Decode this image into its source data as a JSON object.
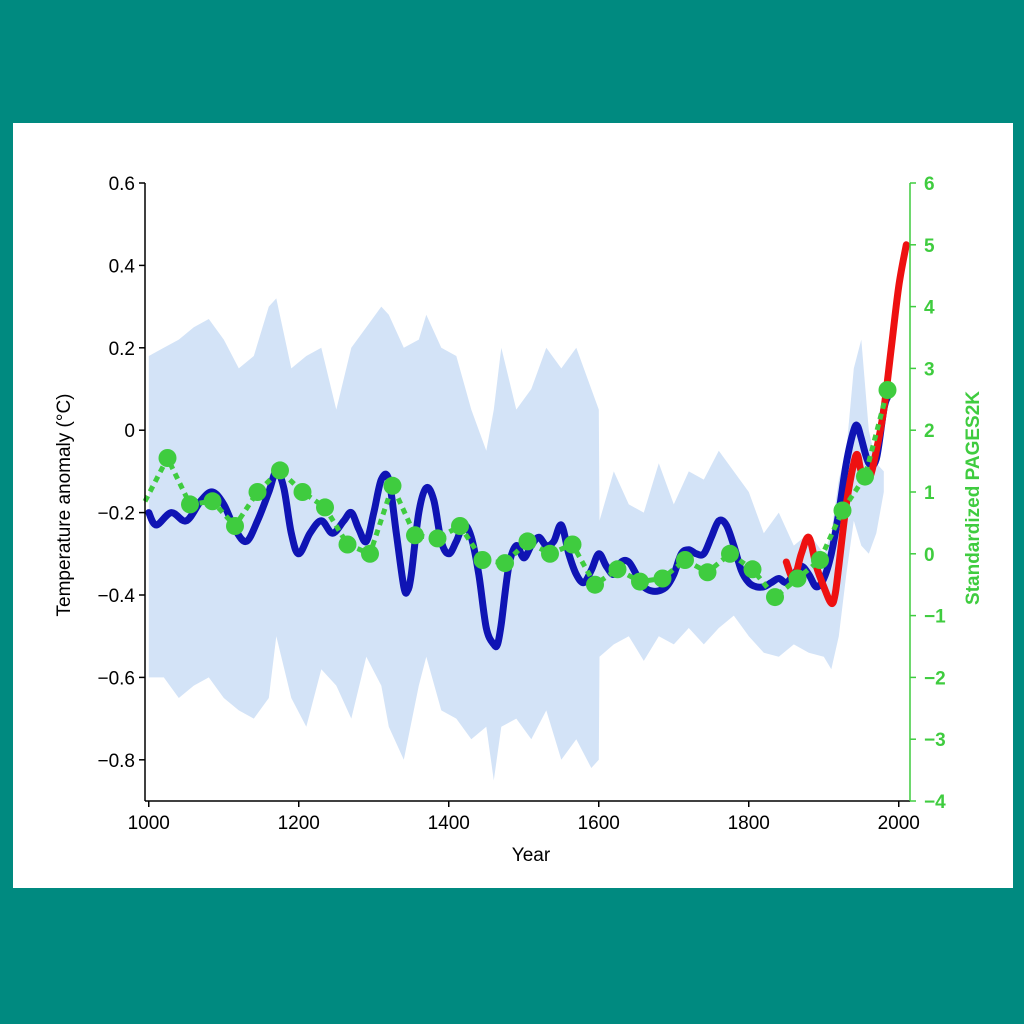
{
  "colors": {
    "background": "#008a80",
    "panel": "#ffffff",
    "reconstruction": "#0f14b4",
    "uncertainty": "#d3e3f7",
    "instrumental": "#ee1111",
    "pages2k": "#3fcc3f"
  },
  "chart_data": {
    "type": "line",
    "title": "",
    "xlabel": "Year",
    "ylabel": "Temperature anomaly (°C)",
    "ylabel_right": "Standardized PAGES2K",
    "xlim": [
      995,
      2015
    ],
    "ylim": [
      -0.9,
      0.6
    ],
    "ylim_right": [
      -4,
      6
    ],
    "x_ticks": [
      1000,
      1200,
      1400,
      1600,
      1800,
      2000
    ],
    "y_ticks": [
      0.6,
      0.4,
      0.2,
      0,
      -0.2,
      -0.4,
      -0.6,
      -0.8
    ],
    "y_tick_labels": [
      "0.6",
      "0.4",
      "0.2",
      "0",
      "−0.2",
      "−0.4",
      "−0.6",
      "−0.8"
    ],
    "y_right_ticks": [
      6,
      5,
      4,
      3,
      2,
      1,
      0,
      -1,
      -2,
      -3,
      -4
    ],
    "y_right_tick_labels": [
      "6",
      "5",
      "4",
      "3",
      "2",
      "1",
      "0",
      "−1",
      "−2",
      "−3",
      "−4"
    ],
    "grid": false,
    "series": [
      {
        "type": "band",
        "x": [
          1000,
          1020,
          1040,
          1060,
          1080,
          1100,
          1120,
          1140,
          1160,
          1170,
          1190,
          1210,
          1230,
          1250,
          1270,
          1290,
          1310,
          1320,
          1340,
          1360,
          1370,
          1390,
          1410,
          1430,
          1450,
          1460,
          1470,
          1490,
          1510,
          1530,
          1550,
          1570,
          1590,
          1600,
          1601,
          1620,
          1640,
          1660,
          1680,
          1700,
          1720,
          1740,
          1760,
          1780,
          1800,
          1820,
          1840,
          1860,
          1880,
          1900,
          1910,
          1920,
          1930,
          1940,
          1950,
          1960,
          1970,
          1980
        ],
        "upper": [
          0.18,
          0.2,
          0.22,
          0.25,
          0.27,
          0.22,
          0.15,
          0.18,
          0.3,
          0.32,
          0.15,
          0.18,
          0.2,
          0.05,
          0.2,
          0.25,
          0.3,
          0.28,
          0.2,
          0.22,
          0.28,
          0.2,
          0.18,
          0.05,
          -0.05,
          0.05,
          0.2,
          0.05,
          0.1,
          0.2,
          0.15,
          0.2,
          0.1,
          0.05,
          -0.22,
          -0.1,
          -0.18,
          -0.2,
          -0.08,
          -0.18,
          -0.1,
          -0.12,
          -0.05,
          -0.1,
          -0.15,
          -0.25,
          -0.2,
          -0.28,
          -0.25,
          -0.3,
          -0.25,
          -0.12,
          -0.05,
          0.15,
          0.22,
          0.0,
          -0.08,
          -0.1
        ],
        "lower": [
          -0.6,
          -0.6,
          -0.65,
          -0.62,
          -0.6,
          -0.65,
          -0.68,
          -0.7,
          -0.65,
          -0.5,
          -0.65,
          -0.72,
          -0.58,
          -0.62,
          -0.7,
          -0.55,
          -0.62,
          -0.72,
          -0.8,
          -0.62,
          -0.55,
          -0.68,
          -0.7,
          -0.75,
          -0.72,
          -0.85,
          -0.72,
          -0.7,
          -0.75,
          -0.68,
          -0.8,
          -0.75,
          -0.82,
          -0.8,
          -0.55,
          -0.52,
          -0.5,
          -0.56,
          -0.5,
          -0.52,
          -0.48,
          -0.52,
          -0.48,
          -0.45,
          -0.5,
          -0.54,
          -0.55,
          -0.52,
          -0.54,
          -0.55,
          -0.58,
          -0.5,
          -0.35,
          -0.22,
          -0.28,
          -0.3,
          -0.25,
          -0.15
        ]
      },
      {
        "type": "line",
        "x": [
          1000,
          1010,
          1030,
          1050,
          1070,
          1085,
          1100,
          1115,
          1130,
          1145,
          1160,
          1170,
          1180,
          1190,
          1200,
          1215,
          1230,
          1245,
          1260,
          1270,
          1280,
          1290,
          1300,
          1310,
          1320,
          1330,
          1340,
          1345,
          1350,
          1360,
          1370,
          1380,
          1390,
          1400,
          1410,
          1420,
          1430,
          1440,
          1450,
          1460,
          1465,
          1470,
          1480,
          1490,
          1500,
          1510,
          1520,
          1530,
          1540,
          1550,
          1560,
          1570,
          1580,
          1590,
          1600,
          1610,
          1620,
          1630,
          1640,
          1650,
          1660,
          1670,
          1680,
          1690,
          1700,
          1710,
          1720,
          1730,
          1740,
          1750,
          1760,
          1770,
          1780,
          1790,
          1800,
          1810,
          1820,
          1830,
          1840,
          1850,
          1860,
          1870,
          1880,
          1890,
          1900,
          1910,
          1920,
          1930,
          1940,
          1945,
          1950,
          1960,
          1970,
          1980,
          1985
        ],
        "y": [
          -0.2,
          -0.23,
          -0.2,
          -0.22,
          -0.17,
          -0.15,
          -0.18,
          -0.24,
          -0.27,
          -0.22,
          -0.15,
          -0.1,
          -0.14,
          -0.25,
          -0.3,
          -0.25,
          -0.22,
          -0.25,
          -0.22,
          -0.2,
          -0.24,
          -0.27,
          -0.2,
          -0.12,
          -0.12,
          -0.25,
          -0.38,
          -0.39,
          -0.35,
          -0.2,
          -0.14,
          -0.17,
          -0.27,
          -0.3,
          -0.27,
          -0.23,
          -0.26,
          -0.35,
          -0.48,
          -0.52,
          -0.52,
          -0.47,
          -0.33,
          -0.28,
          -0.31,
          -0.28,
          -0.26,
          -0.28,
          -0.27,
          -0.23,
          -0.3,
          -0.35,
          -0.37,
          -0.34,
          -0.3,
          -0.33,
          -0.35,
          -0.32,
          -0.32,
          -0.35,
          -0.38,
          -0.39,
          -0.39,
          -0.38,
          -0.35,
          -0.3,
          -0.29,
          -0.3,
          -0.3,
          -0.26,
          -0.22,
          -0.23,
          -0.28,
          -0.34,
          -0.37,
          -0.38,
          -0.38,
          -0.37,
          -0.36,
          -0.37,
          -0.35,
          -0.33,
          -0.35,
          -0.38,
          -0.36,
          -0.3,
          -0.2,
          -0.08,
          0.0,
          0.01,
          -0.02,
          -0.08,
          -0.07,
          0.05,
          0.08
        ]
      },
      {
        "type": "line",
        "x": [
          1850,
          1860,
          1870,
          1880,
          1890,
          1900,
          1910,
          1915,
          1920,
          1930,
          1940,
          1945,
          1950,
          1960,
          1970,
          1980,
          1990,
          2000,
          2010
        ],
        "y": [
          -0.32,
          -0.36,
          -0.3,
          -0.26,
          -0.33,
          -0.38,
          -0.42,
          -0.4,
          -0.33,
          -0.18,
          -0.08,
          -0.06,
          -0.1,
          -0.12,
          -0.05,
          0.05,
          0.2,
          0.35,
          0.45
        ]
      },
      {
        "type": "dotted-line",
        "axis": "right",
        "x": [
          995,
          1025,
          1055,
          1085,
          1115,
          1145,
          1175,
          1205,
          1235,
          1265,
          1295,
          1325,
          1355,
          1385,
          1415,
          1445,
          1475,
          1505,
          1535,
          1565,
          1595,
          1625,
          1655,
          1685,
          1715,
          1745,
          1775,
          1805,
          1835,
          1865,
          1895,
          1925,
          1955,
          1985
        ],
        "y": [
          0.85,
          1.55,
          0.8,
          0.85,
          0.45,
          1.0,
          1.35,
          1.0,
          0.75,
          0.15,
          0.0,
          1.1,
          0.3,
          0.25,
          0.45,
          -0.1,
          -0.15,
          0.2,
          0.0,
          0.15,
          -0.5,
          -0.25,
          -0.45,
          -0.4,
          -0.1,
          -0.3,
          0.0,
          -0.25,
          -0.7,
          -0.4,
          -0.1,
          0.7,
          1.25,
          2.65
        ],
        "markers": [
          1025,
          1055,
          1085,
          1115,
          1145,
          1175,
          1205,
          1235,
          1265,
          1295,
          1325,
          1355,
          1385,
          1415,
          1445,
          1475,
          1505,
          1535,
          1565,
          1595,
          1625,
          1655,
          1685,
          1715,
          1745,
          1775,
          1805,
          1835,
          1865,
          1895,
          1925,
          1955,
          1985
        ]
      }
    ]
  }
}
